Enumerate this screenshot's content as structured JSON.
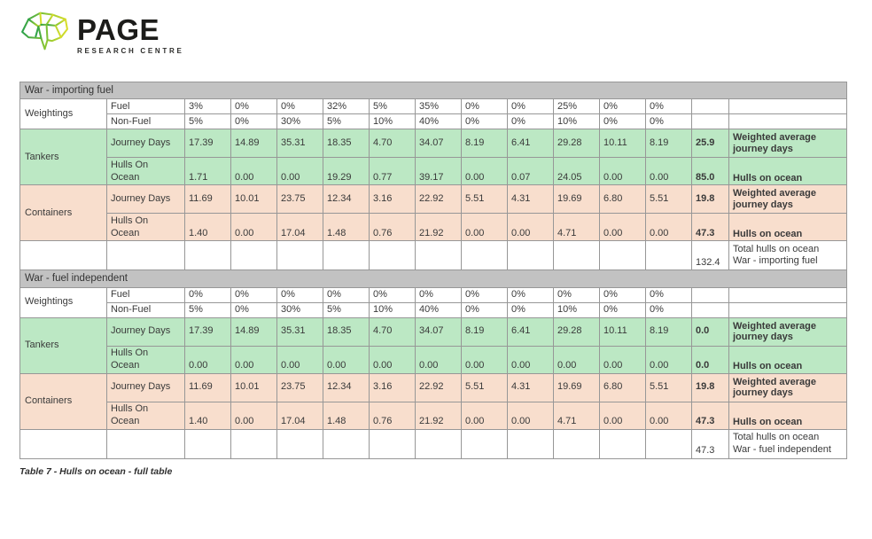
{
  "logo": {
    "name": "PAGE",
    "tagline": "RESEARCH CENTRE",
    "gradient_start": "#2ba04a",
    "gradient_mid": "#8fc832",
    "gradient_end": "#dade2b"
  },
  "caption": "Table 7 - Hulls on ocean - full table",
  "colors": {
    "section_header_bg": "#c2c2c2",
    "tankers_bg": "#bce8c4",
    "containers_bg": "#f8decd",
    "grid_border": "#979797"
  },
  "row_labels": {
    "weightings": "Weightings",
    "fuel": "Fuel",
    "non_fuel": "Non-Fuel",
    "tankers": "Tankers",
    "containers": "Containers",
    "journey_days": "Journey Days",
    "hulls_on_ocean": "Hulls On\nOcean",
    "weighted_average_desc": "Weighted average journey days",
    "hulls_on_ocean_desc": "Hulls on ocean"
  },
  "sections": [
    {
      "title": "War - importing fuel",
      "fuel_weights": [
        "3%",
        "0%",
        "0%",
        "32%",
        "5%",
        "35%",
        "0%",
        "0%",
        "25%",
        "0%",
        "0%"
      ],
      "non_fuel_weights": [
        "5%",
        "0%",
        "30%",
        "5%",
        "10%",
        "40%",
        "0%",
        "0%",
        "10%",
        "0%",
        "0%"
      ],
      "tankers": {
        "journey_days": [
          "17.39",
          "14.89",
          "35.31",
          "18.35",
          "4.70",
          "34.07",
          "8.19",
          "6.41",
          "29.28",
          "10.11",
          "8.19"
        ],
        "journey_avg": "25.9",
        "hulls": [
          "1.71",
          "0.00",
          "0.00",
          "19.29",
          "0.77",
          "39.17",
          "0.00",
          "0.07",
          "24.05",
          "0.00",
          "0.00"
        ],
        "hulls_total": "85.0"
      },
      "containers": {
        "journey_days": [
          "11.69",
          "10.01",
          "23.75",
          "12.34",
          "3.16",
          "22.92",
          "5.51",
          "4.31",
          "19.69",
          "6.80",
          "5.51"
        ],
        "journey_avg": "19.8",
        "hulls": [
          "1.40",
          "0.00",
          "17.04",
          "1.48",
          "0.76",
          "21.92",
          "0.00",
          "0.00",
          "4.71",
          "0.00",
          "0.00"
        ],
        "hulls_total": "47.3"
      },
      "total": "132.4",
      "total_label": "Total hulls on ocean\nWar - importing fuel"
    },
    {
      "title": "War - fuel independent",
      "fuel_weights": [
        "0%",
        "0%",
        "0%",
        "0%",
        "0%",
        "0%",
        "0%",
        "0%",
        "0%",
        "0%",
        "0%"
      ],
      "non_fuel_weights": [
        "5%",
        "0%",
        "30%",
        "5%",
        "10%",
        "40%",
        "0%",
        "0%",
        "10%",
        "0%",
        "0%"
      ],
      "tankers": {
        "journey_days": [
          "17.39",
          "14.89",
          "35.31",
          "18.35",
          "4.70",
          "34.07",
          "8.19",
          "6.41",
          "29.28",
          "10.11",
          "8.19"
        ],
        "journey_avg": "0.0",
        "hulls": [
          "0.00",
          "0.00",
          "0.00",
          "0.00",
          "0.00",
          "0.00",
          "0.00",
          "0.00",
          "0.00",
          "0.00",
          "0.00"
        ],
        "hulls_total": "0.0"
      },
      "containers": {
        "journey_days": [
          "11.69",
          "10.01",
          "23.75",
          "12.34",
          "3.16",
          "22.92",
          "5.51",
          "4.31",
          "19.69",
          "6.80",
          "5.51"
        ],
        "journey_avg": "19.8",
        "hulls": [
          "1.40",
          "0.00",
          "17.04",
          "1.48",
          "0.76",
          "21.92",
          "0.00",
          "0.00",
          "4.71",
          "0.00",
          "0.00"
        ],
        "hulls_total": "47.3"
      },
      "total": "47.3",
      "total_label": "Total hulls on ocean\nWar - fuel independent"
    }
  ]
}
